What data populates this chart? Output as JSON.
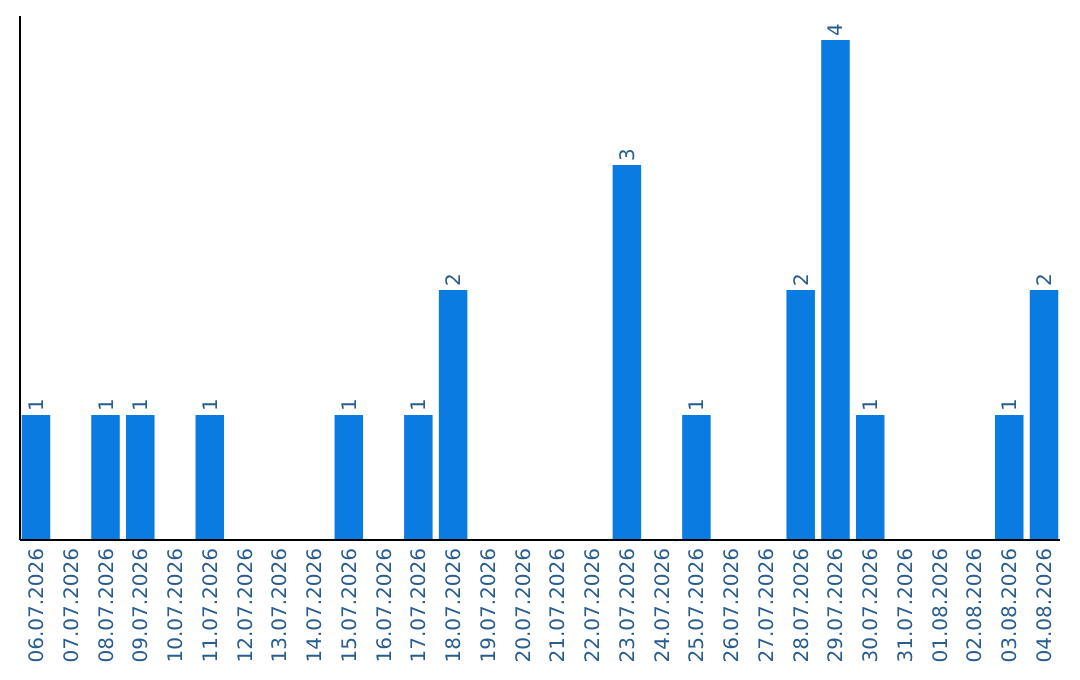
{
  "chart_data": {
    "type": "bar",
    "categories": [
      "06.07.2026",
      "07.07.2026",
      "08.07.2026",
      "09.07.2026",
      "10.07.2026",
      "11.07.2026",
      "12.07.2026",
      "13.07.2026",
      "14.07.2026",
      "15.07.2026",
      "16.07.2026",
      "17.07.2026",
      "18.07.2026",
      "19.07.2026",
      "20.07.2026",
      "21.07.2026",
      "22.07.2026",
      "23.07.2026",
      "24.07.2026",
      "25.07.2026",
      "26.07.2026",
      "27.07.2026",
      "28.07.2026",
      "29.07.2026",
      "30.07.2026",
      "31.07.2026",
      "01.08.2026",
      "02.08.2026",
      "03.08.2026",
      "04.08.2026"
    ],
    "values": [
      1,
      0,
      1,
      1,
      0,
      1,
      0,
      0,
      0,
      1,
      0,
      1,
      2,
      0,
      0,
      0,
      0,
      3,
      0,
      1,
      0,
      0,
      2,
      4,
      1,
      0,
      0,
      0,
      1,
      2
    ],
    "value_labels": [
      "1",
      null,
      "1",
      "1",
      null,
      "1",
      null,
      null,
      null,
      "1",
      null,
      "1",
      "2",
      null,
      null,
      null,
      null,
      "3",
      null,
      "1",
      null,
      null,
      "2",
      "4",
      "1",
      null,
      null,
      null,
      "1",
      "2"
    ],
    "color": "#0a7be0",
    "tick_labels": "x"
  }
}
